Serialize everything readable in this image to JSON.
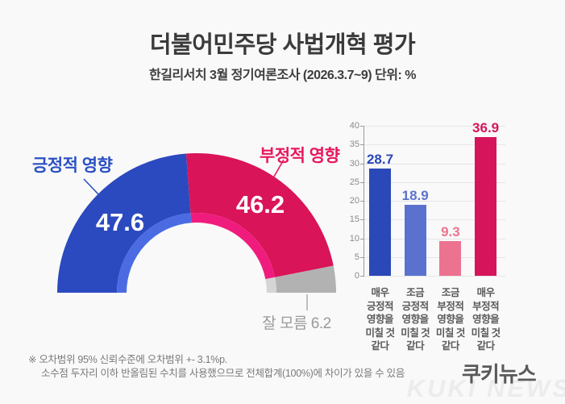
{
  "header": {
    "title": "더불어민주당 사법개혁 평가",
    "subtitle": "한길리서치 3월 정기여론조사 (2026.3.7~9) 단위: %"
  },
  "donut": {
    "positive_label": "긍정적 영향",
    "positive_value": "47.6",
    "negative_label": "부정적 영향",
    "negative_value": "46.2",
    "unknown_label": "잘 모름 6.2"
  },
  "chart_data": [
    {
      "type": "pie",
      "variant": "half-donut",
      "unit": "%",
      "slices": [
        {
          "label": "긍정적 영향",
          "value": 47.6,
          "color": "#2c4abf",
          "rim_color": "#4a6be2",
          "text_color": "#2b50c4"
        },
        {
          "label": "부정적 영향",
          "value": 46.2,
          "color": "#d91459",
          "rim_color": "#f01c7d",
          "text_color": "#e8175d"
        },
        {
          "label": "잘 모름",
          "value": 6.2,
          "color": "#b2b2b2",
          "rim_color": "#d5d5d5",
          "text_color": "#9a9a9a"
        }
      ]
    },
    {
      "type": "bar",
      "unit": "%",
      "categories": [
        "매우 긍정적 영향을 미칠 것 같다",
        "조금 긍정적 영향을 미칠 것 같다",
        "조금 부정적 영향을 미칠 것 같다",
        "매우 부정적 영향을 미칠 것 같다"
      ],
      "category_lines": [
        [
          "매우",
          "긍정적",
          "영향을",
          "미칠 것",
          "같다"
        ],
        [
          "조금",
          "긍정적",
          "영향을",
          "미칠 것",
          "같다"
        ],
        [
          "조금",
          "부정적",
          "영향을",
          "미칠 것",
          "같다"
        ],
        [
          "매우",
          "부정적",
          "영향을",
          "미칠 것",
          "같다"
        ]
      ],
      "values": [
        28.7,
        18.9,
        9.3,
        36.9
      ],
      "bar_colors": [
        "#2a48b8",
        "#5a72ce",
        "#ec7390",
        "#d6145c"
      ],
      "ylim": [
        0,
        40
      ],
      "yticks": [
        0,
        5,
        10,
        15,
        20,
        25,
        30,
        35,
        40
      ],
      "grid": true,
      "legend_position": "none"
    }
  ],
  "footnote": {
    "line1": "※ 오차범위 95% 신뢰수준에 오차범위 +- 3.1%p.",
    "line2": "소수점 두자리 이하 반올림된 수치를 사용했으므로 전체합계(100%)에 차이가 있을 수 있음"
  },
  "branding": {
    "logo": "쿠키뉴스",
    "watermark": "KUKI NEWS"
  }
}
